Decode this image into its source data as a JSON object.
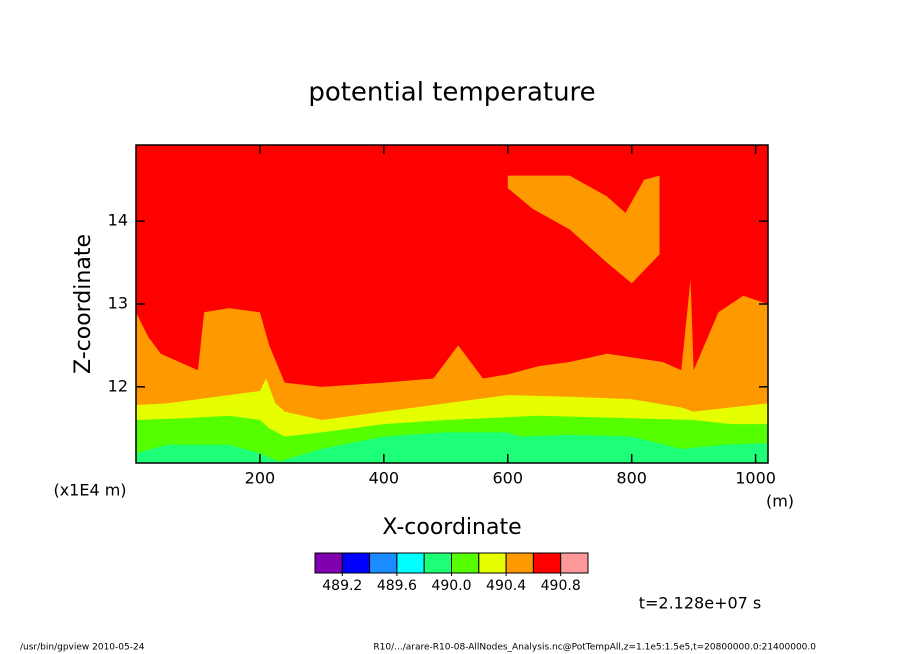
{
  "chart_data": {
    "type": "contour",
    "title": "potential temperature",
    "xlabel": "X-coordinate",
    "ylabel": "Z-coordinate",
    "xunit": "(m)",
    "yunit": "(x1E4 m)",
    "xlim": [
      0,
      1020
    ],
    "ylim": [
      11.08,
      14.92
    ],
    "xticks": [
      200,
      400,
      600,
      800,
      1000
    ],
    "yticks": [
      12,
      13,
      14
    ],
    "background_color": "#ff0000",
    "regions": [
      {
        "color": "#ff9900",
        "x": [
          0,
          0,
          20,
          40,
          70,
          100,
          110,
          150,
          200,
          215,
          240,
          300,
          400,
          480,
          520,
          560,
          600,
          650,
          700,
          760,
          850,
          880,
          895,
          900,
          940,
          980,
          1020,
          1020
        ],
        "y": [
          11.08,
          12.9,
          12.6,
          12.4,
          12.3,
          12.2,
          12.9,
          12.95,
          12.9,
          12.5,
          12.05,
          12.0,
          12.05,
          12.1,
          12.5,
          12.1,
          12.15,
          12.25,
          12.3,
          12.4,
          12.3,
          12.2,
          13.3,
          12.2,
          12.9,
          13.1,
          13.0,
          11.08
        ]
      },
      {
        "color": "#ff9900",
        "x": [
          600,
          700,
          760,
          790,
          820,
          845,
          845,
          800,
          760,
          700,
          640,
          600
        ],
        "y": [
          14.55,
          14.55,
          14.3,
          14.1,
          14.5,
          14.55,
          13.6,
          13.25,
          13.5,
          13.9,
          14.15,
          14.4
        ]
      },
      {
        "color": "#e6ff00",
        "x": [
          0,
          0,
          50,
          100,
          150,
          200,
          210,
          225,
          240,
          300,
          400,
          500,
          600,
          700,
          800,
          880,
          900,
          960,
          1020,
          1020
        ],
        "y": [
          11.08,
          11.78,
          11.8,
          11.85,
          11.9,
          11.95,
          12.1,
          11.8,
          11.7,
          11.6,
          11.7,
          11.8,
          11.9,
          11.88,
          11.85,
          11.75,
          11.7,
          11.75,
          11.8,
          11.08
        ]
      },
      {
        "color": "#55ff00",
        "x": [
          0,
          0,
          80,
          150,
          200,
          215,
          240,
          300,
          400,
          500,
          650,
          800,
          900,
          960,
          1020,
          1020
        ],
        "y": [
          11.08,
          11.6,
          11.62,
          11.65,
          11.6,
          11.5,
          11.4,
          11.45,
          11.55,
          11.6,
          11.65,
          11.62,
          11.6,
          11.55,
          11.55,
          11.08
        ]
      },
      {
        "color": "#1eff78",
        "x": [
          0,
          0,
          50,
          150,
          200,
          230,
          300,
          400,
          500,
          600,
          620,
          700,
          800,
          880,
          950,
          1020,
          1020
        ],
        "y": [
          11.08,
          11.2,
          11.3,
          11.3,
          11.2,
          11.1,
          11.25,
          11.4,
          11.45,
          11.45,
          11.4,
          11.42,
          11.4,
          11.25,
          11.3,
          11.32,
          11.08
        ]
      }
    ],
    "colorbar": {
      "levels": [
        489.0,
        489.2,
        489.4,
        489.6,
        489.8,
        490.0,
        490.2,
        490.4,
        490.6,
        490.8,
        491.0
      ],
      "colors": [
        "#8000b0",
        "#0000ff",
        "#1a8cff",
        "#00ffff",
        "#1eff78",
        "#55ff00",
        "#e6ff00",
        "#ff9900",
        "#ff0000",
        "#ff9999"
      ],
      "ticks": [
        489.2,
        489.6,
        {
          "value": 490.0,
          "label": "490.0"
        },
        490.4,
        490.8
      ]
    },
    "time_label": "t=2.128e+07 s",
    "footer_left": "/usr/bin/gpview   2010-05-24",
    "footer_right": "R10/.../arare-R10-08-AllNodes_Analysis.nc@PotTempAll,z=1.1e5:1.5e5,t=20800000.0:21400000.0"
  }
}
